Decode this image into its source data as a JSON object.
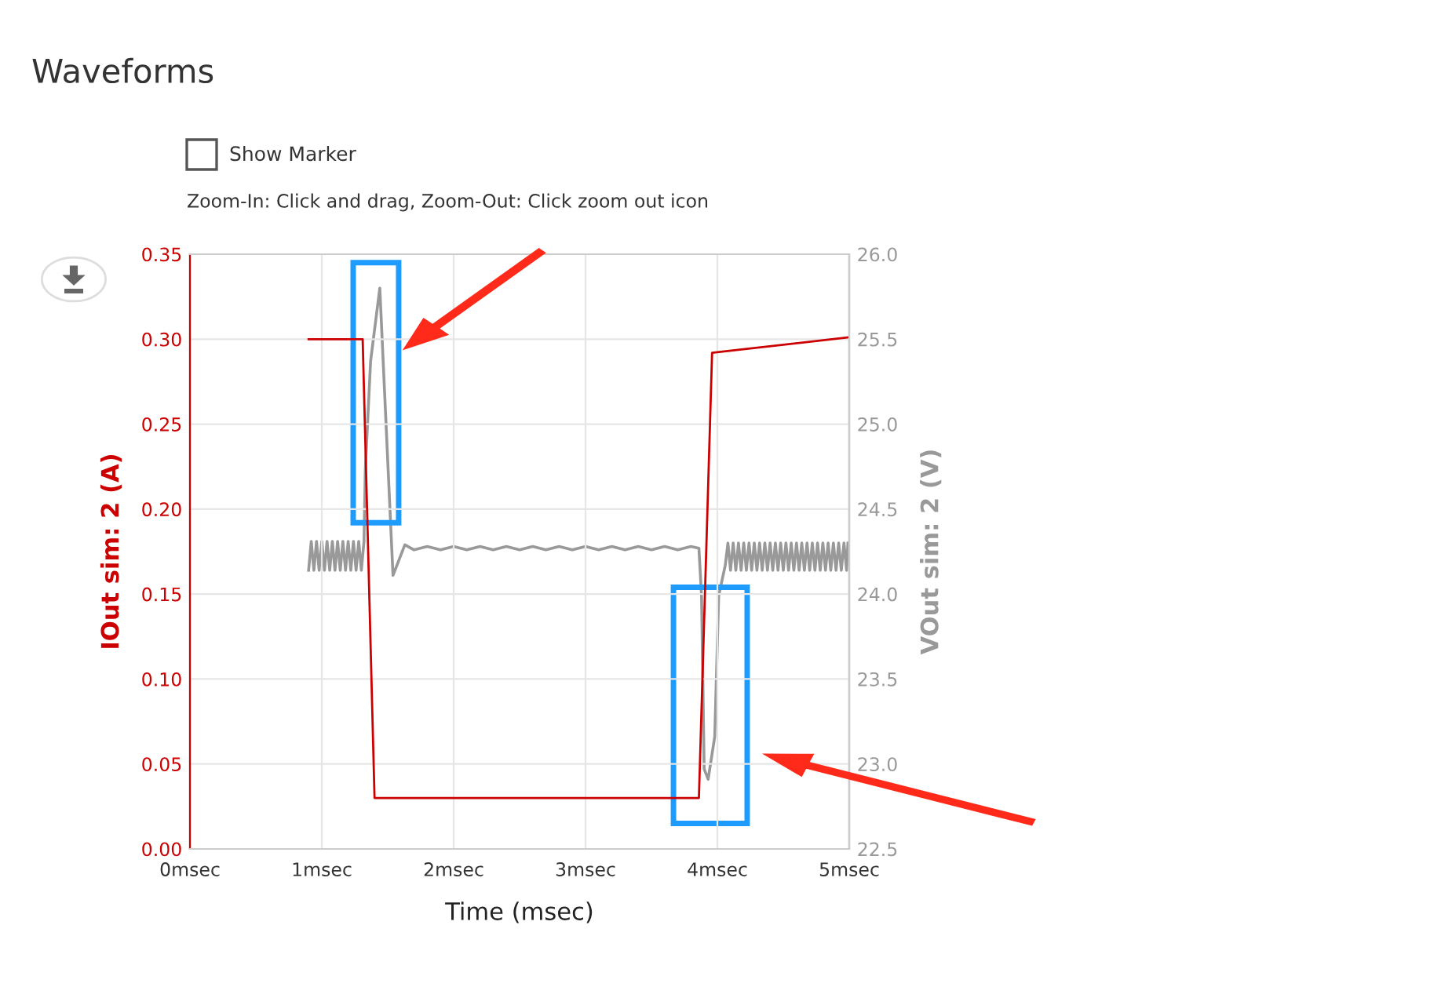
{
  "chart_data": {
    "type": "line",
    "title": "Waveforms",
    "annotations": [
      "Show Marker",
      "Zoom-In: Click and drag, Zoom-Out: Click zoom out icon"
    ],
    "xlabel": "Time (msec)",
    "ylabel": "IOut sim: 2 (A)",
    "y2label": "VOut sim: 2 (V)",
    "xlim": [
      0,
      5
    ],
    "xticks": [
      {
        "value": 0,
        "label": "0msec"
      },
      {
        "value": 1,
        "label": "1msec"
      },
      {
        "value": 2,
        "label": "2msec"
      },
      {
        "value": 3,
        "label": "3msec"
      },
      {
        "value": 4,
        "label": "4msec"
      },
      {
        "value": 5,
        "label": "5msec"
      }
    ],
    "ylim": [
      0,
      0.35
    ],
    "yticks": [
      {
        "value": 0,
        "label": "0.00"
      },
      {
        "value": 0.05,
        "label": "0.05"
      },
      {
        "value": 0.1,
        "label": "0.10"
      },
      {
        "value": 0.15,
        "label": "0.15"
      },
      {
        "value": 0.2,
        "label": "0.20"
      },
      {
        "value": 0.25,
        "label": "0.25"
      },
      {
        "value": 0.3,
        "label": "0.30"
      },
      {
        "value": 0.35,
        "label": "0.35"
      }
    ],
    "y2lim": [
      22.5,
      26.0
    ],
    "y2ticks": [
      {
        "value": 22.5,
        "label": "22.5"
      },
      {
        "value": 23,
        "label": "23.0"
      },
      {
        "value": 23.5,
        "label": "23.5"
      },
      {
        "value": 24,
        "label": "24.0"
      },
      {
        "value": 24.5,
        "label": "24.5"
      },
      {
        "value": 25,
        "label": "25.0"
      },
      {
        "value": 25.5,
        "label": "25.5"
      },
      {
        "value": 26,
        "label": "26.0"
      }
    ],
    "grid": true,
    "series": [
      {
        "color": "#cc0000",
        "x": [
          0.9,
          1.31,
          1.4,
          3.86,
          3.96,
          4.99
        ],
        "values": [
          0.3,
          0.3,
          0.03,
          0.03,
          0.292,
          0.301
        ]
      },
      {
        "color": "#999999",
        "axis": "y2",
        "x": [
          0.9,
          0.92,
          0.94,
          0.96,
          0.98,
          1.0,
          1.02,
          1.04,
          1.06,
          1.08,
          1.1,
          1.12,
          1.14,
          1.16,
          1.18,
          1.2,
          1.22,
          1.24,
          1.26,
          1.28,
          1.3,
          1.32,
          1.33,
          1.37,
          1.44,
          1.54,
          1.63,
          1.7,
          1.8,
          1.9,
          2.0,
          2.1,
          2.2,
          2.3,
          2.4,
          2.5,
          2.6,
          2.7,
          2.8,
          2.9,
          3.0,
          3.1,
          3.2,
          3.3,
          3.4,
          3.5,
          3.6,
          3.7,
          3.8,
          3.86,
          3.88,
          3.9,
          3.93,
          3.98,
          4.01,
          4.06,
          4.08,
          4.1,
          4.12,
          4.14,
          4.16,
          4.18,
          4.2,
          4.22,
          4.24,
          4.26,
          4.28,
          4.3,
          4.32,
          4.34,
          4.36,
          4.38,
          4.4,
          4.42,
          4.44,
          4.46,
          4.48,
          4.5,
          4.52,
          4.54,
          4.56,
          4.58,
          4.6,
          4.62,
          4.64,
          4.66,
          4.68,
          4.7,
          4.72,
          4.74,
          4.76,
          4.78,
          4.8,
          4.82,
          4.84,
          4.86,
          4.88,
          4.9,
          4.92,
          4.94,
          4.96,
          4.98,
          4.99
        ],
        "values": [
          24.14,
          24.31,
          24.14,
          24.31,
          24.14,
          24.31,
          24.14,
          24.31,
          24.14,
          24.31,
          24.14,
          24.31,
          24.14,
          24.31,
          24.14,
          24.31,
          24.14,
          24.31,
          24.14,
          24.31,
          24.14,
          24.31,
          24.73,
          25.37,
          25.8,
          24.11,
          24.29,
          24.26,
          24.28,
          24.26,
          24.28,
          24.26,
          24.28,
          24.26,
          24.28,
          24.26,
          24.28,
          24.26,
          24.28,
          24.26,
          24.28,
          24.26,
          24.28,
          24.26,
          24.28,
          24.26,
          24.28,
          24.26,
          24.28,
          24.27,
          23.99,
          22.97,
          22.91,
          23.16,
          23.99,
          24.17,
          24.3,
          24.14,
          24.3,
          24.14,
          24.3,
          24.14,
          24.3,
          24.14,
          24.3,
          24.14,
          24.3,
          24.14,
          24.3,
          24.14,
          24.3,
          24.14,
          24.3,
          24.14,
          24.3,
          24.14,
          24.3,
          24.14,
          24.3,
          24.14,
          24.3,
          24.14,
          24.3,
          24.14,
          24.3,
          24.14,
          24.3,
          24.14,
          24.3,
          24.14,
          24.3,
          24.14,
          24.3,
          24.14,
          24.3,
          24.14,
          24.3,
          24.14,
          24.3,
          24.14,
          24.3,
          24.14,
          24.3
        ]
      }
    ]
  }
}
